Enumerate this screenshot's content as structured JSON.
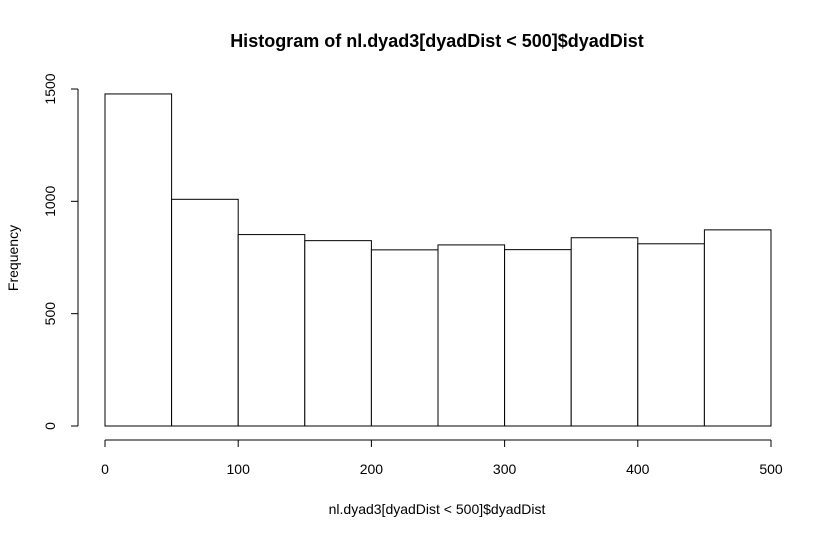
{
  "chart_data": {
    "type": "bar",
    "title": "Histogram of nl.dyad3[dyadDist < 500]$dyadDist",
    "xlabel": "nl.dyad3[dyadDist < 500]$dyadDist",
    "ylabel": "Frequency",
    "bins": [
      {
        "start": 0,
        "end": 50,
        "count": 1478
      },
      {
        "start": 50,
        "end": 100,
        "count": 1009
      },
      {
        "start": 100,
        "end": 150,
        "count": 852
      },
      {
        "start": 150,
        "end": 200,
        "count": 825
      },
      {
        "start": 200,
        "end": 250,
        "count": 784
      },
      {
        "start": 250,
        "end": 300,
        "count": 806
      },
      {
        "start": 300,
        "end": 350,
        "count": 785
      },
      {
        "start": 350,
        "end": 400,
        "count": 838
      },
      {
        "start": 400,
        "end": 450,
        "count": 811
      },
      {
        "start": 450,
        "end": 500,
        "count": 873
      }
    ],
    "xlim": [
      0,
      500
    ],
    "ylim": [
      0,
      1500
    ],
    "xticks": [
      0,
      100,
      200,
      300,
      400,
      500
    ],
    "yticks": [
      0,
      500,
      1000,
      1500
    ],
    "grid": false,
    "bar_fill": "#ffffff",
    "bar_stroke": "#000000"
  }
}
